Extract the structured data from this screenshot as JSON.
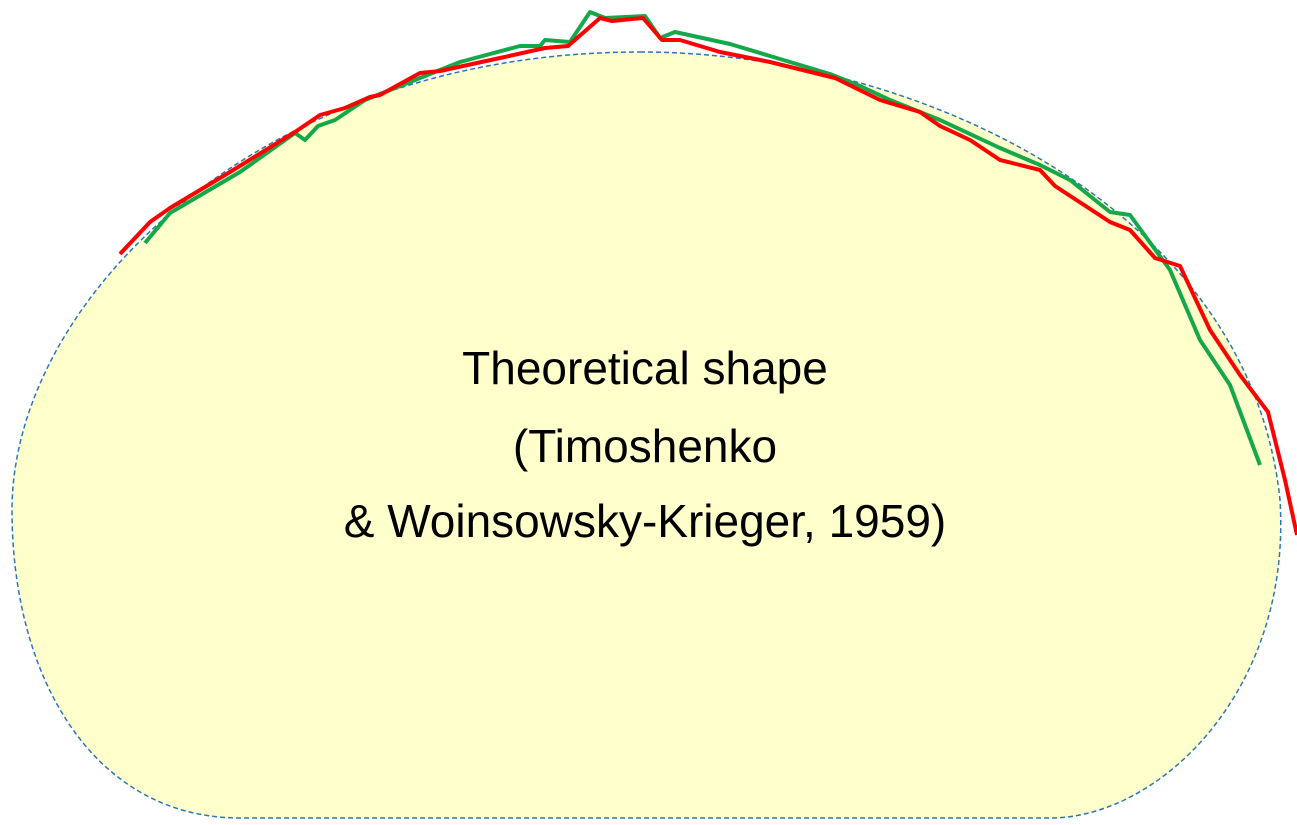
{
  "label": {
    "lines": [
      "Theoretical shape",
      "(Timoshenko",
      "& Woinsowsky-Krieger, 1959)"
    ]
  }
}
